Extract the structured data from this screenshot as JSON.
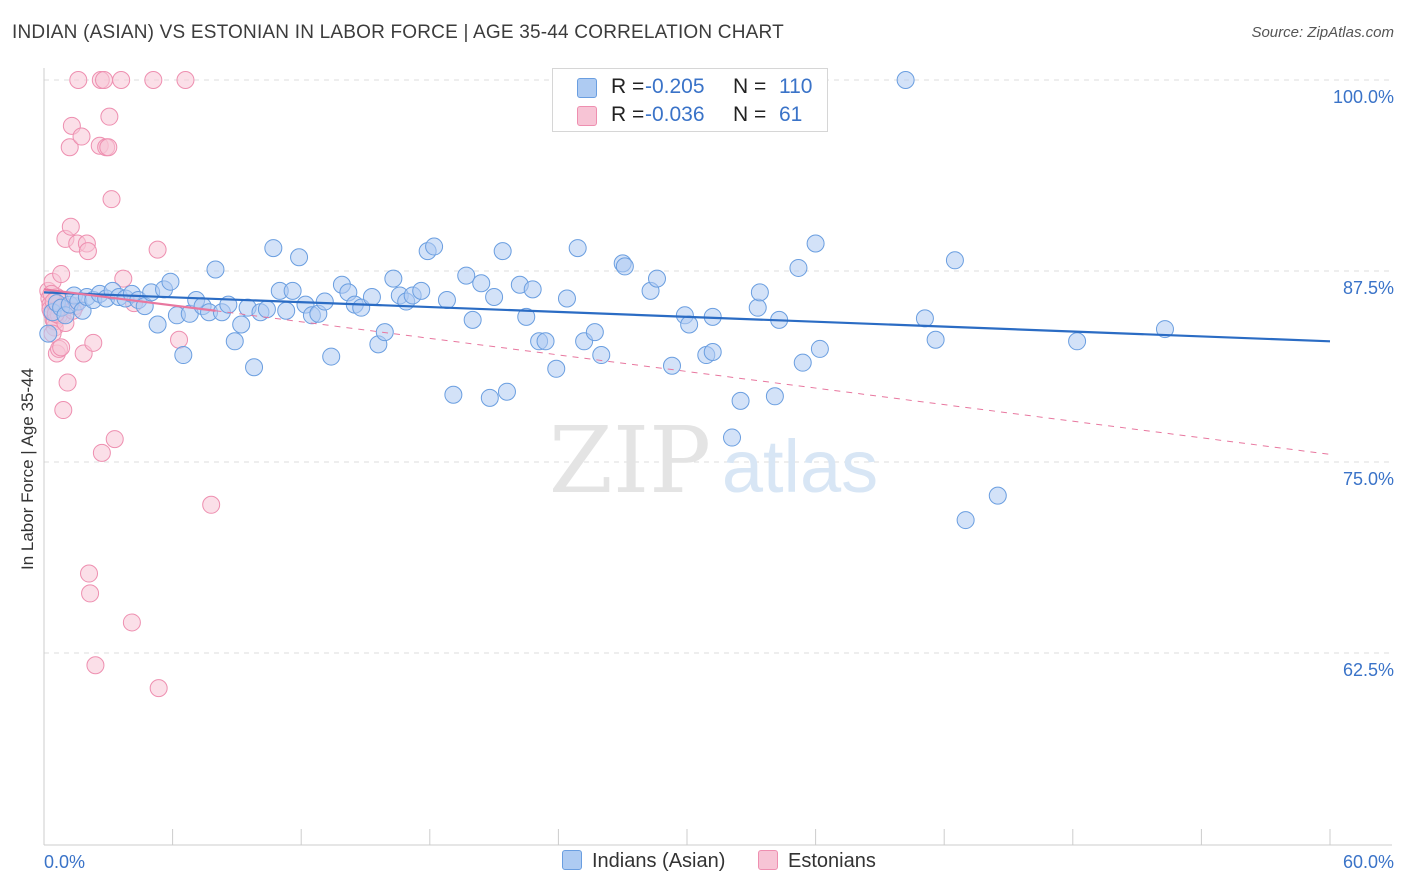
{
  "title": "INDIAN (ASIAN) VS ESTONIAN IN LABOR FORCE | AGE 35-44 CORRELATION CHART",
  "source": "Source: ZipAtlas.com",
  "watermark": {
    "zip": "ZIP",
    "atlas": "atlas"
  },
  "legend": {
    "rows": [
      {
        "r_label": "R =",
        "r_value": "-0.205",
        "n_label": "N =",
        "n_value": "110",
        "color": "#a8c8f0"
      },
      {
        "r_label": "R =",
        "r_value": "-0.036",
        "n_label": "N =",
        "n_value": "61",
        "color": "#f5b8cc"
      }
    ]
  },
  "bottom_legend": [
    "Indians (Asian)",
    "Estonians"
  ],
  "chart_data": {
    "type": "scatter",
    "xlabel": "",
    "ylabel": "In Labor Force | Age 35-44",
    "xlim": [
      0,
      60
    ],
    "ylim": [
      50,
      100
    ],
    "x_tick_labels": [
      "0.0%",
      "60.0%"
    ],
    "y_tick_labels": [
      "100.0%",
      "87.5%",
      "75.0%",
      "62.5%"
    ],
    "y_tick_values": [
      100,
      87.5,
      75,
      62.5
    ],
    "grid": true,
    "legend_position": "top-center",
    "colors": {
      "indian": "#6a9ee0",
      "indian_fill": "#aecbf2",
      "estonian": "#ee8fb0",
      "estonian_fill": "#f7c4d5",
      "indian_line": "#2b6cc4",
      "estonian_line": "#e8779f"
    },
    "series": [
      {
        "name": "Indians (Asian)",
        "trend": {
          "x": [
            0,
            60
          ],
          "y": [
            86.1,
            82.9
          ]
        },
        "points": [
          [
            0.2,
            83.4
          ],
          [
            0.4,
            84.8
          ],
          [
            0.6,
            85.4
          ],
          [
            0.8,
            85.1
          ],
          [
            1.0,
            84.6
          ],
          [
            1.2,
            85.3
          ],
          [
            1.4,
            85.9
          ],
          [
            1.6,
            85.5
          ],
          [
            1.8,
            84.9
          ],
          [
            2.0,
            85.8
          ],
          [
            2.3,
            85.6
          ],
          [
            2.6,
            86.0
          ],
          [
            2.9,
            85.7
          ],
          [
            3.2,
            86.2
          ],
          [
            3.5,
            85.8
          ],
          [
            3.8,
            85.7
          ],
          [
            4.1,
            86.0
          ],
          [
            4.4,
            85.6
          ],
          [
            4.7,
            85.2
          ],
          [
            5.0,
            86.1
          ],
          [
            5.3,
            84.0
          ],
          [
            5.6,
            86.3
          ],
          [
            5.9,
            86.8
          ],
          [
            6.2,
            84.6
          ],
          [
            6.5,
            82.0
          ],
          [
            6.8,
            84.7
          ],
          [
            7.1,
            85.6
          ],
          [
            7.4,
            85.2
          ],
          [
            7.7,
            84.8
          ],
          [
            8.0,
            87.6
          ],
          [
            8.3,
            84.8
          ],
          [
            8.6,
            85.3
          ],
          [
            8.9,
            82.9
          ],
          [
            9.2,
            84.0
          ],
          [
            9.5,
            85.1
          ],
          [
            9.8,
            81.2
          ],
          [
            10.1,
            84.8
          ],
          [
            10.4,
            85.0
          ],
          [
            10.7,
            89.0
          ],
          [
            11.0,
            86.2
          ],
          [
            11.3,
            84.9
          ],
          [
            11.6,
            86.2
          ],
          [
            11.9,
            88.4
          ],
          [
            12.2,
            85.3
          ],
          [
            12.5,
            84.6
          ],
          [
            12.8,
            84.7
          ],
          [
            13.1,
            85.5
          ],
          [
            13.4,
            81.9
          ],
          [
            13.9,
            86.6
          ],
          [
            14.2,
            86.1
          ],
          [
            14.5,
            85.3
          ],
          [
            14.8,
            85.1
          ],
          [
            15.3,
            85.8
          ],
          [
            15.6,
            82.7
          ],
          [
            15.9,
            83.5
          ],
          [
            16.3,
            87.0
          ],
          [
            16.6,
            85.9
          ],
          [
            16.9,
            85.5
          ],
          [
            17.2,
            85.9
          ],
          [
            17.6,
            86.2
          ],
          [
            17.9,
            88.8
          ],
          [
            18.2,
            89.1
          ],
          [
            18.8,
            85.6
          ],
          [
            19.1,
            79.4
          ],
          [
            19.7,
            87.2
          ],
          [
            20.0,
            84.3
          ],
          [
            20.4,
            86.7
          ],
          [
            20.8,
            79.2
          ],
          [
            21.0,
            85.8
          ],
          [
            21.4,
            88.8
          ],
          [
            21.6,
            79.6
          ],
          [
            22.2,
            86.6
          ],
          [
            22.5,
            84.5
          ],
          [
            22.8,
            86.3
          ],
          [
            23.1,
            82.9
          ],
          [
            23.4,
            82.9
          ],
          [
            23.9,
            81.1
          ],
          [
            24.4,
            85.7
          ],
          [
            24.9,
            89.0
          ],
          [
            25.2,
            82.9
          ],
          [
            25.7,
            83.5
          ],
          [
            26.0,
            82.0
          ],
          [
            27.0,
            88.0
          ],
          [
            27.1,
            87.8
          ],
          [
            28.3,
            86.2
          ],
          [
            28.6,
            87.0
          ],
          [
            29.3,
            81.3
          ],
          [
            29.9,
            84.6
          ],
          [
            30.1,
            84.0
          ],
          [
            30.9,
            82.0
          ],
          [
            31.2,
            82.2
          ],
          [
            31.2,
            84.5
          ],
          [
            32.5,
            79.0
          ],
          [
            32.1,
            76.6
          ],
          [
            33.3,
            85.1
          ],
          [
            33.4,
            86.1
          ],
          [
            34.3,
            84.3
          ],
          [
            34.1,
            79.3
          ],
          [
            35.2,
            87.7
          ],
          [
            35.4,
            81.5
          ],
          [
            36.0,
            89.3
          ],
          [
            36.2,
            82.4
          ],
          [
            40.2,
            100
          ],
          [
            41.1,
            84.4
          ],
          [
            41.6,
            83.0
          ],
          [
            42.5,
            88.2
          ],
          [
            43.0,
            71.2
          ],
          [
            44.5,
            72.8
          ],
          [
            48.2,
            82.9
          ],
          [
            52.3,
            83.7
          ]
        ]
      },
      {
        "name": "Estonians",
        "trend": {
          "x": [
            0,
            8.0
          ],
          "y": [
            86.3,
            84.9
          ]
        },
        "trend_ext": {
          "x": [
            8.0,
            60
          ],
          "y": [
            84.9,
            75.5
          ]
        },
        "points": [
          [
            0.2,
            86.2
          ],
          [
            0.25,
            85.7
          ],
          [
            0.3,
            85.3
          ],
          [
            0.35,
            84.8
          ],
          [
            0.4,
            86.8
          ],
          [
            0.45,
            84.3
          ],
          [
            0.5,
            83.8
          ],
          [
            0.55,
            85.2
          ],
          [
            0.6,
            82.1
          ],
          [
            0.7,
            82.4
          ],
          [
            0.75,
            85.6
          ],
          [
            0.8,
            87.3
          ],
          [
            0.85,
            84.6
          ],
          [
            0.9,
            78.4
          ],
          [
            1.0,
            89.6
          ],
          [
            1.1,
            80.2
          ],
          [
            1.2,
            95.6
          ],
          [
            1.25,
            90.4
          ],
          [
            1.3,
            97.0
          ],
          [
            1.45,
            85.2
          ],
          [
            1.55,
            89.3
          ],
          [
            1.6,
            100
          ],
          [
            1.75,
            96.3
          ],
          [
            1.85,
            82.1
          ],
          [
            2.0,
            89.3
          ],
          [
            2.05,
            88.8
          ],
          [
            2.1,
            67.7
          ],
          [
            2.15,
            66.4
          ],
          [
            2.3,
            82.8
          ],
          [
            2.4,
            61.7
          ],
          [
            2.6,
            95.7
          ],
          [
            2.65,
            100
          ],
          [
            2.7,
            75.6
          ],
          [
            2.8,
            100
          ],
          [
            2.9,
            95.6
          ],
          [
            3.0,
            95.6
          ],
          [
            3.05,
            97.6
          ],
          [
            3.15,
            92.2
          ],
          [
            3.3,
            76.5
          ],
          [
            3.6,
            100
          ],
          [
            3.7,
            87.0
          ],
          [
            4.1,
            64.5
          ],
          [
            4.2,
            85.4
          ],
          [
            5.1,
            100
          ],
          [
            5.3,
            88.9
          ],
          [
            5.35,
            60.2
          ],
          [
            6.3,
            83.0
          ],
          [
            6.6,
            100
          ],
          [
            7.8,
            72.2
          ],
          [
            0.3,
            85.0
          ],
          [
            0.5,
            84.2
          ],
          [
            0.7,
            84.6
          ],
          [
            0.9,
            85.2
          ],
          [
            0.4,
            83.4
          ],
          [
            0.6,
            85.8
          ],
          [
            1.0,
            84.1
          ],
          [
            0.35,
            86.0
          ],
          [
            0.55,
            84.7
          ],
          [
            0.45,
            85.5
          ],
          [
            1.35,
            84.9
          ],
          [
            0.8,
            82.5
          ]
        ]
      }
    ]
  }
}
